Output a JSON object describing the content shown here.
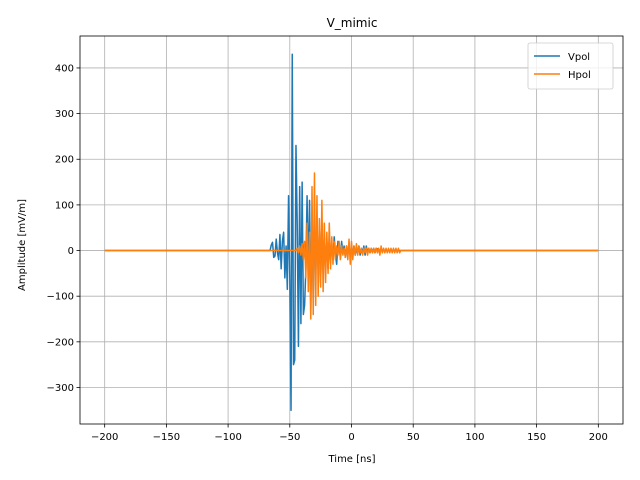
{
  "chart_data": {
    "type": "line",
    "title": "V_mimic",
    "xlabel": "Time [ns]",
    "ylabel": "Amplitude [mV/m]",
    "xlim": [
      -220,
      220
    ],
    "ylim": [
      -380,
      470
    ],
    "xticks": [
      -200,
      -150,
      -100,
      -50,
      0,
      50,
      100,
      150,
      200
    ],
    "xtick_labels": [
      "−200",
      "−150",
      "−100",
      "−50",
      "0",
      "50",
      "100",
      "150",
      "200"
    ],
    "yticks": [
      -300,
      -200,
      -100,
      0,
      100,
      200,
      300,
      400
    ],
    "ytick_labels": [
      "−300",
      "−200",
      "−100",
      "0",
      "100",
      "200",
      "300",
      "400"
    ],
    "grid": true,
    "legend_position": "top-right",
    "series": [
      {
        "name": "Vpol",
        "color": "#1f77b4",
        "x": [
          -200,
          -66,
          -65,
          -64,
          -63,
          -62,
          -61,
          -60,
          -59,
          -58,
          -57,
          -56,
          -55,
          -54,
          -53,
          -52,
          -51,
          -50,
          -49,
          -48,
          -47,
          -46,
          -45,
          -44,
          -43,
          -42,
          -41,
          -40,
          -39,
          -38,
          -37,
          -36,
          -35,
          -34,
          -33,
          -32,
          -31,
          -30,
          -29,
          -28,
          -27,
          -26,
          -25,
          -24,
          -23,
          -22,
          -21,
          -20,
          -19,
          -18,
          -17,
          -16,
          -15,
          -14,
          -13,
          -12,
          -11,
          -10,
          -9,
          -8,
          -7,
          -6,
          -5,
          -4,
          -3,
          -2,
          -1,
          0,
          1,
          2,
          3,
          4,
          5,
          6,
          7,
          8,
          9,
          10,
          11,
          12,
          13,
          14,
          15,
          16,
          17,
          18,
          19,
          20,
          22,
          24,
          200
        ],
        "y": [
          0,
          0,
          12,
          18,
          -15,
          -12,
          25,
          -5,
          -20,
          35,
          -40,
          20,
          40,
          -60,
          10,
          -85,
          120,
          -60,
          -350,
          430,
          -250,
          -240,
          230,
          60,
          -210,
          140,
          -160,
          150,
          -140,
          -120,
          -40,
          120,
          -60,
          110,
          -130,
          80,
          -110,
          80,
          -50,
          60,
          -40,
          40,
          -70,
          60,
          -50,
          30,
          -30,
          20,
          -40,
          20,
          -10,
          10,
          -20,
          30,
          -10,
          -30,
          20,
          10,
          -15,
          20,
          -5,
          10,
          -15,
          10,
          -5,
          5,
          -10,
          5,
          -5,
          10,
          -10,
          5,
          -5,
          10,
          -10,
          5,
          -5,
          10,
          -10,
          10,
          -5,
          5,
          -5,
          5,
          -5,
          5,
          -5,
          5,
          2,
          0,
          0
        ]
      },
      {
        "name": "Hpol",
        "color": "#ff7f0e",
        "x": [
          -200,
          -45,
          -44,
          -43,
          -42,
          -41,
          -40,
          -39,
          -38,
          -37,
          -36,
          -35,
          -34,
          -33,
          -32,
          -31,
          -30,
          -29,
          -28,
          -27,
          -26,
          -25,
          -24,
          -23,
          -22,
          -21,
          -20,
          -19,
          -18,
          -17,
          -16,
          -15,
          -14,
          -13,
          -12,
          -11,
          -10,
          -9,
          -8,
          -7,
          -6,
          -5,
          -4,
          -3,
          -2,
          -1,
          0,
          1,
          2,
          3,
          4,
          5,
          6,
          7,
          8,
          9,
          10,
          11,
          12,
          13,
          14,
          15,
          16,
          17,
          18,
          19,
          20,
          21,
          22,
          23,
          24,
          25,
          26,
          27,
          28,
          29,
          30,
          31,
          32,
          33,
          34,
          35,
          36,
          37,
          38,
          39,
          40,
          200
        ],
        "y": [
          0,
          0,
          5,
          -5,
          10,
          -10,
          15,
          -20,
          20,
          -60,
          60,
          -90,
          40,
          -150,
          140,
          -140,
          170,
          -120,
          120,
          -100,
          70,
          -80,
          110,
          -90,
          60,
          -70,
          40,
          -50,
          60,
          -40,
          30,
          -30,
          20,
          -20,
          10,
          -10,
          20,
          -20,
          10,
          -10,
          5,
          -15,
          10,
          -20,
          25,
          -30,
          20,
          -20,
          10,
          -10,
          15,
          -10,
          10,
          -5,
          5,
          -10,
          5,
          -5,
          5,
          -10,
          5,
          -5,
          5,
          -5,
          5,
          -5,
          5,
          -5,
          5,
          -10,
          10,
          -5,
          5,
          -5,
          5,
          -5,
          5,
          -5,
          5,
          -5,
          5,
          -5,
          5,
          -5,
          5,
          -5,
          0,
          0
        ]
      }
    ]
  }
}
